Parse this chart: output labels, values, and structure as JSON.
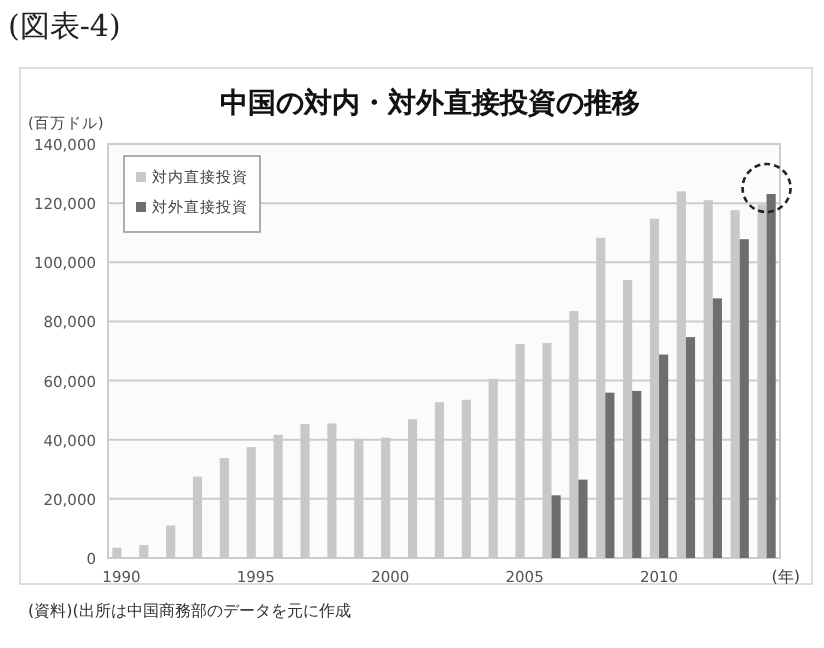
{
  "chart_data": {
    "type": "bar",
    "title": "中国の対内・対外直接投資の推移",
    "ylabel": "(百万ドル)",
    "xlabel": "(年)",
    "annotations": [
      "(図表-4)",
      "(資料)(出所は中国商務部のデータを元に作成"
    ],
    "categories": [
      "1990",
      null,
      null,
      null,
      null,
      "1995",
      null,
      null,
      null,
      null,
      "2000",
      null,
      null,
      null,
      null,
      "2005",
      null,
      null,
      null,
      null,
      "2010",
      null,
      null,
      null,
      null
    ],
    "series": [
      {
        "name": "対内直接投資",
        "color": "#c8c8c8",
        "values": [
          3500,
          4400,
          11000,
          27500,
          33800,
          37500,
          41700,
          45300,
          45500,
          40300,
          40700,
          46900,
          52700,
          53500,
          60600,
          72400,
          72700,
          83500,
          108300,
          94000,
          114700,
          124000,
          121000,
          117600,
          119600
        ]
      },
      {
        "name": "対外直接投資",
        "color": "#6e6e6e",
        "values": [
          null,
          null,
          null,
          null,
          null,
          null,
          null,
          null,
          null,
          null,
          null,
          null,
          null,
          null,
          null,
          null,
          21200,
          26500,
          55900,
          56500,
          68800,
          74700,
          87800,
          107800,
          123100
        ]
      }
    ],
    "ylim": [
      0,
      140000
    ],
    "yticks": [
      {
        "value": 0,
        "label": "0"
      },
      {
        "value": 20000,
        "label": "20,000"
      },
      {
        "value": 40000,
        "label": "40,000"
      },
      {
        "value": 60000,
        "label": "60,000"
      },
      {
        "value": 80000,
        "label": "80,000"
      },
      {
        "value": 100000,
        "label": "100,000"
      },
      {
        "value": 120000,
        "label": "120,000"
      },
      {
        "value": 140000,
        "label": "140,000"
      }
    ],
    "grid": "y",
    "legend": "top left"
  }
}
